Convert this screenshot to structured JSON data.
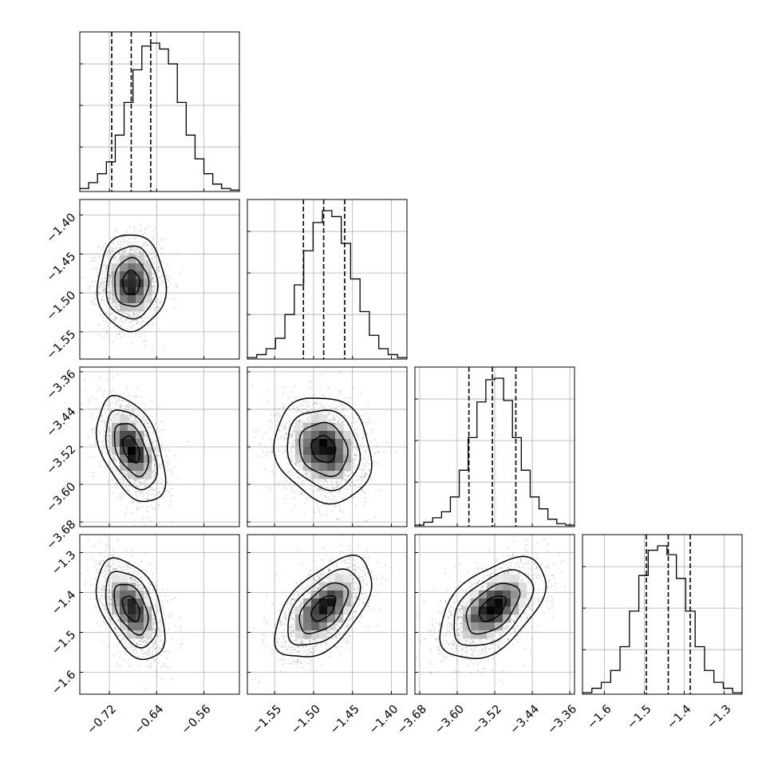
{
  "chart_data": {
    "type": "corner",
    "grid": true,
    "parameters": [
      {
        "xlim": [
          -0.77,
          -0.5
        ],
        "x_ticks": [
          -0.72,
          -0.64,
          -0.56
        ],
        "x_tick_labels": [
          "−0.72",
          "−0.64",
          "−0.56"
        ],
        "y_ticks": [
          -1.55,
          -1.5,
          -1.45,
          -1.4
        ],
        "y_tick_labels": [
          "−1.55",
          "−1.50",
          "−1.45",
          "−1.40"
        ],
        "quantiles": [
          -0.716,
          -0.683,
          -0.65
        ],
        "hist": [
          0.02,
          0.06,
          0.12,
          0.2,
          0.38,
          0.6,
          0.82,
          0.98,
          1.0,
          0.96,
          0.86,
          0.6,
          0.38,
          0.22,
          0.12,
          0.05,
          0.02,
          0.01
        ]
      },
      {
        "xlim": [
          -1.585,
          -1.38
        ],
        "x_ticks": [
          -1.55,
          -1.5,
          -1.45,
          -1.4
        ],
        "x_tick_labels": [
          "−1.55",
          "−1.50",
          "−1.45",
          "−1.40"
        ],
        "y_ticks": [
          -3.68,
          -3.6,
          -3.52,
          -3.44,
          -3.36
        ],
        "y_tick_labels": [
          "−3.68",
          "−3.60",
          "−3.52",
          "−3.44",
          "−3.36"
        ],
        "quantiles": [
          -1.513,
          -1.487,
          -1.46
        ],
        "hist": [
          0.01,
          0.03,
          0.07,
          0.14,
          0.3,
          0.5,
          0.73,
          0.92,
          1.0,
          0.96,
          0.78,
          0.54,
          0.32,
          0.16,
          0.07,
          0.03,
          0.01
        ]
      },
      {
        "xlim": [
          -3.69,
          -3.35
        ],
        "x_ticks": [
          -3.68,
          -3.6,
          -3.52,
          -3.44,
          -3.36
        ],
        "x_tick_labels": [
          "−3.68",
          "−3.60",
          "−3.52",
          "−3.44",
          "−3.36"
        ],
        "y_ticks": [
          -1.6,
          -1.5,
          -1.4,
          -1.3
        ],
        "y_tick_labels": [
          "−1.6",
          "−1.5",
          "−1.4",
          "−1.3"
        ],
        "quantiles": [
          -3.575,
          -3.525,
          -3.475
        ],
        "hist": [
          0.01,
          0.03,
          0.06,
          0.1,
          0.2,
          0.38,
          0.6,
          0.84,
          0.99,
          1.0,
          0.85,
          0.6,
          0.38,
          0.2,
          0.12,
          0.05,
          0.02,
          0.01
        ]
      },
      {
        "xlim": [
          -1.655,
          -1.255
        ],
        "x_ticks": [
          -1.6,
          -1.5,
          -1.4,
          -1.3
        ],
        "x_tick_labels": [
          "−1.6",
          "−1.5",
          "−1.4",
          "−1.3"
        ],
        "quantiles": [
          -1.495,
          -1.44,
          -1.385
        ],
        "hist": [
          0.01,
          0.04,
          0.08,
          0.16,
          0.32,
          0.56,
          0.8,
          0.97,
          1.0,
          0.94,
          0.78,
          0.56,
          0.32,
          0.16,
          0.08,
          0.04,
          0.01
        ]
      }
    ],
    "pairs": [
      {
        "row": 1,
        "col": 0,
        "mean": [
          -0.683,
          -1.487
        ],
        "sd": [
          0.025,
          0.027
        ],
        "rho": 0.0
      },
      {
        "row": 2,
        "col": 0,
        "mean": [
          -0.683,
          -3.525
        ],
        "sd": [
          0.025,
          0.049
        ],
        "rho": -0.45
      },
      {
        "row": 2,
        "col": 1,
        "mean": [
          -1.487,
          -3.525
        ],
        "sd": [
          0.027,
          0.049
        ],
        "rho": -0.15
      },
      {
        "row": 3,
        "col": 0,
        "mean": [
          -0.683,
          -1.44
        ],
        "sd": [
          0.025,
          0.055
        ],
        "rho": -0.45
      },
      {
        "row": 3,
        "col": 1,
        "mean": [
          -1.487,
          -1.44
        ],
        "sd": [
          0.027,
          0.055
        ],
        "rho": 0.55
      },
      {
        "row": 3,
        "col": 2,
        "mean": [
          -3.525,
          -1.44
        ],
        "sd": [
          0.049,
          0.055
        ],
        "rho": 0.5
      }
    ],
    "contour_levels_sigma": [
      0.5,
      1.0,
      1.5,
      2.0
    ],
    "colors": {
      "line": "#000000",
      "grid": "#b0b0b0",
      "points": "#808080",
      "density_dark": "#000000"
    }
  }
}
